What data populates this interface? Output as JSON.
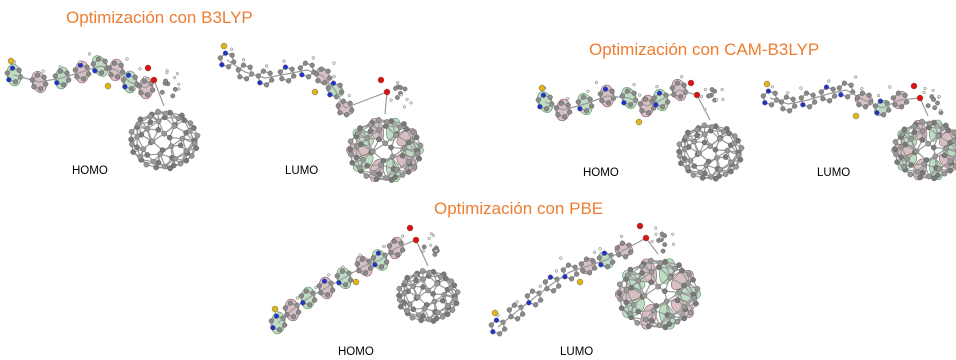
{
  "sections": [
    {
      "title": "Optimización con B3LYP",
      "panels": [
        {
          "label": "HOMO",
          "orbital_on": "donor"
        },
        {
          "label": "LUMO",
          "orbital_on": "fullerene"
        }
      ]
    },
    {
      "title": "Optimización con CAM-B3LYP",
      "panels": [
        {
          "label": "HOMO",
          "orbital_on": "donor"
        },
        {
          "label": "LUMO",
          "orbital_on": "fullerene"
        }
      ]
    },
    {
      "title": "Optimización con PBE",
      "panels": [
        {
          "label": "HOMO",
          "orbital_on": "donor"
        },
        {
          "label": "LUMO",
          "orbital_on": "fullerene"
        }
      ]
    }
  ],
  "colors": {
    "title": "#ed7d31",
    "label": "#000000",
    "carbon": "#8a8a8a",
    "hydrogen": "#e8e8e8",
    "nitrogen": "#2233cc",
    "oxygen": "#dd1111",
    "sulfur": "#e0b51c",
    "lobe_positive": "#6fb27a",
    "lobe_negative": "#a7707a"
  },
  "atom_types": [
    "carbon",
    "hydrogen",
    "nitrogen",
    "oxygen",
    "sulfur"
  ]
}
